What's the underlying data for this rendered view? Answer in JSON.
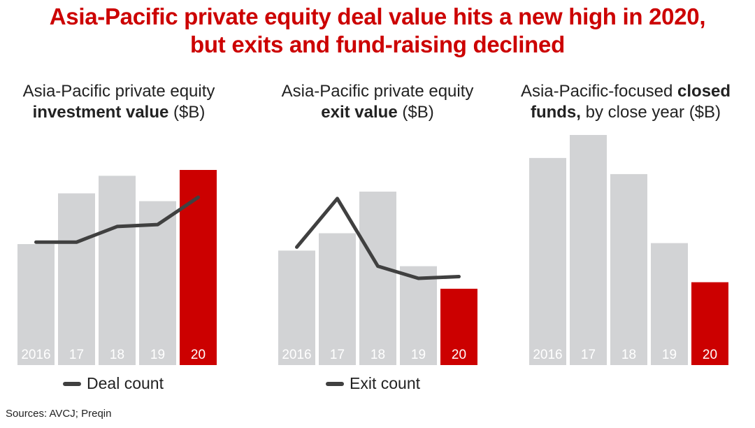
{
  "title_line1": "Asia-Pacific private equity deal value hits a new high in 2020,",
  "title_line2": "but exits and fund-raising declined",
  "source": "Sources: AVCJ; Preqin",
  "colors": {
    "highlight": "#cc0000",
    "bar": "#d2d3d5",
    "line": "#404040",
    "title": "#cc0000"
  },
  "chart_data": [
    {
      "type": "bar",
      "subtitle": {
        "line1": "Asia-Pacific private equity",
        "bold": "investment value",
        "rest": " ($B)"
      },
      "categories": [
        "2016",
        "17",
        "18",
        "19",
        "20"
      ],
      "values": [
        62,
        88,
        97,
        84,
        100
      ],
      "highlight_index": 4,
      "line_series": {
        "name": "Deal count",
        "values": [
          63,
          63,
          71,
          72,
          86
        ]
      },
      "value_scale": "relative (no axis printed), max bar = 100",
      "ylim": [
        0,
        100
      ],
      "grid": false,
      "legend": "bottom-center"
    },
    {
      "type": "bar",
      "subtitle": {
        "line1": "Asia-Pacific private equity",
        "bold": "exit value",
        "rest": " ($B)"
      },
      "categories": [
        "2016",
        "17",
        "18",
        "19",
        "20"
      ],
      "values": [
        66,
        76,
        100,
        57,
        44
      ],
      "highlight_index": 4,
      "line_series": {
        "name": "Exit count",
        "values": [
          68,
          96,
          57,
          50,
          51
        ]
      },
      "value_scale": "relative (no axis printed), max bar = 100",
      "ylim": [
        0,
        100
      ],
      "grid": false,
      "legend": "bottom-center"
    },
    {
      "type": "bar",
      "subtitle": {
        "line1a": "Asia-Pacific-focused ",
        "line1bold": "closed",
        "line2bold": "funds,",
        "rest": " by close year ($B)"
      },
      "categories": [
        "2016",
        "17",
        "18",
        "19",
        "20"
      ],
      "values": [
        90,
        100,
        83,
        53,
        36
      ],
      "highlight_index": 4,
      "value_scale": "relative (no axis printed), max bar = 100",
      "ylim": [
        0,
        100
      ],
      "grid": false
    }
  ]
}
